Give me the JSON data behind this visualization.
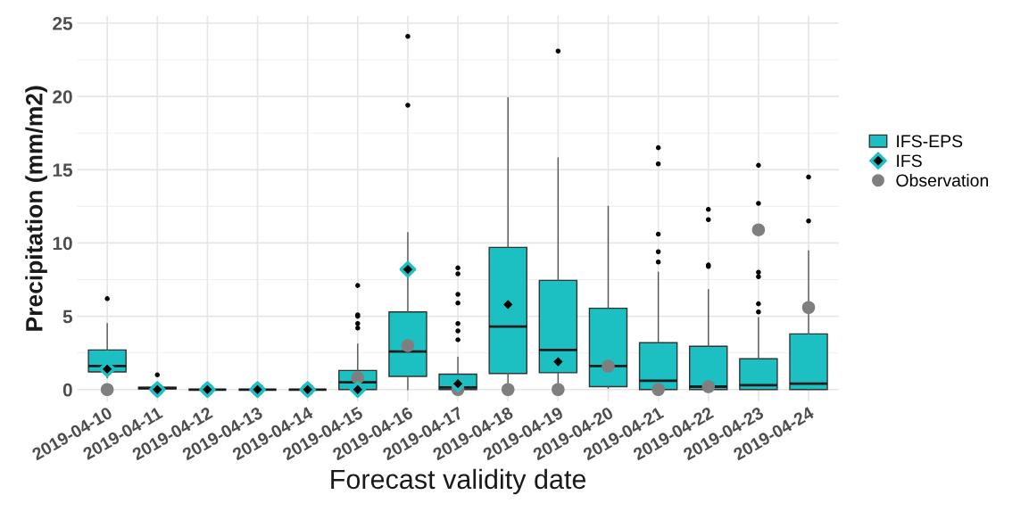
{
  "chart_data": {
    "type": "box",
    "xlabel": "Forecast validity date",
    "ylabel": "Precipitation (mm/m2)",
    "categories": [
      "2019-04-10",
      "2019-04-11",
      "2019-04-12",
      "2019-04-13",
      "2019-04-14",
      "2019-04-15",
      "2019-04-16",
      "2019-04-17",
      "2019-04-18",
      "2019-04-19",
      "2019-04-20",
      "2019-04-21",
      "2019-04-22",
      "2019-04-23",
      "2019-04-24"
    ],
    "ylim": [
      -0.8,
      25.5
    ],
    "yticks": [
      0,
      5,
      10,
      15,
      20,
      25
    ],
    "grid": true,
    "legend": "right",
    "series": [
      {
        "name": "IFS-EPS",
        "color": "#1cbfc2",
        "boxes": [
          {
            "low": 0.8,
            "q1": 1.2,
            "median": 1.6,
            "q3": 2.7,
            "high": 4.5,
            "outliers": [
              6.2
            ]
          },
          {
            "low": 0,
            "q1": 0.05,
            "median": 0.1,
            "q3": 0.15,
            "high": 0.2,
            "outliers": [
              1.0
            ]
          },
          {
            "low": 0,
            "q1": 0,
            "median": 0,
            "q3": 0,
            "high": 0
          },
          {
            "low": 0,
            "q1": 0,
            "median": 0,
            "q3": 0,
            "high": 0
          },
          {
            "low": 0,
            "q1": 0,
            "median": 0,
            "q3": 0,
            "high": 0
          },
          {
            "low": 0,
            "q1": 0,
            "median": 0.5,
            "q3": 1.3,
            "high": 3.1,
            "outliers": [
              4.2,
              4.5,
              5.0,
              5.1,
              7.1
            ]
          },
          {
            "low": 0,
            "q1": 0.9,
            "median": 2.6,
            "q3": 5.3,
            "high": 10.7,
            "outliers": [
              19.4,
              24.1
            ]
          },
          {
            "low": 0,
            "q1": 0,
            "median": 0.15,
            "q3": 1.05,
            "high": 2.2,
            "outliers": [
              3.4,
              4.0,
              4.5,
              5.9,
              6.5,
              7.9,
              8.3
            ]
          },
          {
            "low": 0,
            "q1": 1.1,
            "median": 4.3,
            "q3": 9.7,
            "high": 19.9
          },
          {
            "low": 0,
            "q1": 1.15,
            "median": 2.7,
            "q3": 7.45,
            "high": 15.8,
            "outliers": [
              23.1
            ]
          },
          {
            "low": 0.1,
            "q1": 0.2,
            "median": 1.6,
            "q3": 5.55,
            "high": 12.5
          },
          {
            "low": 0,
            "q1": 0,
            "median": 0.6,
            "q3": 3.2,
            "high": 8.0,
            "outliers": [
              8.7,
              9.4,
              10.6,
              15.4,
              16.5
            ]
          },
          {
            "low": 0,
            "q1": 0,
            "median": 0.2,
            "q3": 2.95,
            "high": 6.8,
            "outliers": [
              8.4,
              8.5,
              11.6,
              12.3
            ]
          },
          {
            "low": 0,
            "q1": 0,
            "median": 0.3,
            "q3": 2.1,
            "high": 4.9,
            "outliers": [
              5.3,
              5.85,
              7.7,
              8.0,
              12.7,
              15.3
            ]
          },
          {
            "low": 0,
            "q1": 0,
            "median": 0.4,
            "q3": 3.8,
            "high": 9.45,
            "outliers": [
              11.5,
              14.5
            ]
          }
        ]
      },
      {
        "name": "IFS",
        "type": "scatter",
        "marker": "diamond",
        "color": "#000000",
        "values": [
          1.4,
          0,
          0,
          0,
          0,
          0,
          8.2,
          0.4,
          5.8,
          1.9,
          null,
          null,
          null,
          null,
          null
        ]
      },
      {
        "name": "Observation",
        "type": "scatter",
        "marker": "circle",
        "color": "#7f7f7f",
        "values": [
          0,
          0,
          0,
          0,
          0,
          0.8,
          3.0,
          0,
          0,
          0,
          1.6,
          0,
          0.2,
          10.9,
          5.6
        ]
      }
    ]
  }
}
